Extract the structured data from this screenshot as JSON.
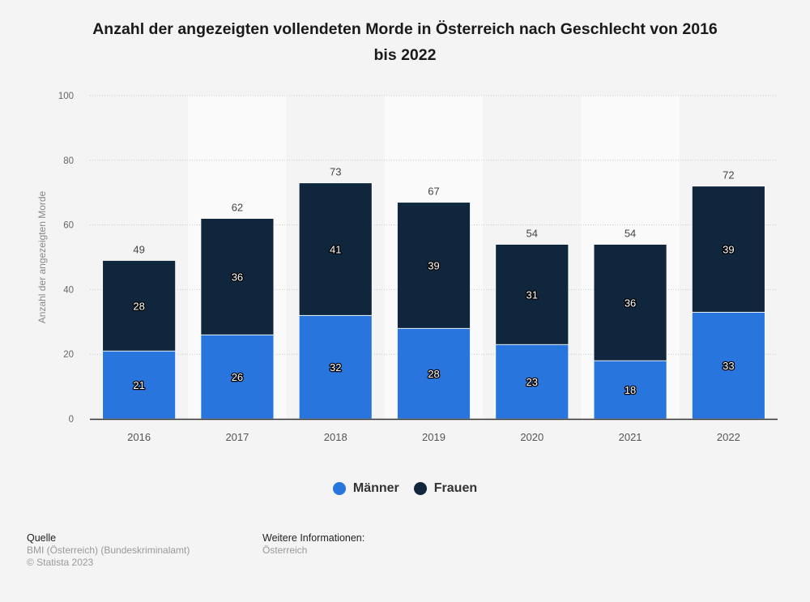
{
  "chart_data": {
    "type": "bar",
    "stacked": true,
    "title": "Anzahl der angezeigten vollendeten Morde in Österreich nach Geschlecht von 2016 bis 2022",
    "xlabel": "",
    "ylabel": "Anzahl der angezeigten Morde",
    "ylim": [
      0,
      100
    ],
    "yticks": [
      0,
      20,
      40,
      60,
      80,
      100
    ],
    "grid": true,
    "legend_position": "bottom-center",
    "categories": [
      "2016",
      "2017",
      "2018",
      "2019",
      "2020",
      "2021",
      "2022"
    ],
    "series": [
      {
        "name": "Männer",
        "color": "#2876dd",
        "values": [
          21,
          26,
          32,
          28,
          23,
          18,
          33
        ]
      },
      {
        "name": "Frauen",
        "color": "#10263d",
        "values": [
          28,
          36,
          41,
          39,
          31,
          36,
          39
        ]
      }
    ],
    "totals": [
      49,
      62,
      73,
      67,
      54,
      54,
      72
    ]
  },
  "header": {
    "title_line1": "Anzahl der angezeigten vollendeten Morde in Österreich nach Geschlecht von 2016",
    "title_line2": "bis 2022"
  },
  "legend": {
    "items": [
      {
        "label": "Männer",
        "color": "#2876dd"
      },
      {
        "label": "Frauen",
        "color": "#10263d"
      }
    ]
  },
  "footer": {
    "source_heading": "Quelle",
    "source_text": "BMI (Österreich) (Bundeskriminalamt)",
    "copyright": "© Statista 2023",
    "info_heading": "Weitere Informationen:",
    "info_text": "Österreich"
  }
}
